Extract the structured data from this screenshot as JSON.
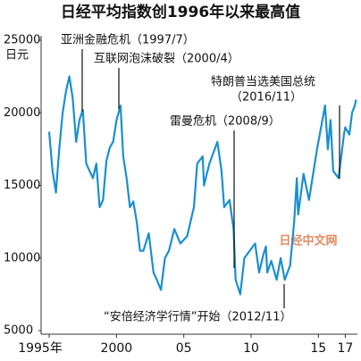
{
  "chart_data": {
    "type": "line",
    "title": "日经平均指数创1996年以来最高值",
    "y_unit": "日元",
    "watermark": "日经中文网",
    "annotations": [
      "亚洲金融危机（1997/7）",
      "互联网泡沫破裂（2000/4）",
      "雷曼危机（2008/9）",
      "特朗普当选美国总统",
      "（2016/11）",
      "“安倍经济学行情”开始（2012/11）"
    ],
    "x": [
      1995.0,
      1995.25,
      1995.5,
      1995.75,
      1996.0,
      1996.25,
      1996.5,
      1996.75,
      1997.0,
      1997.25,
      1997.5,
      1997.75,
      1998.0,
      1998.25,
      1998.5,
      1998.75,
      1999.0,
      1999.25,
      1999.5,
      1999.75,
      2000.0,
      2000.3,
      2000.5,
      2000.75,
      2001.0,
      2001.25,
      2001.5,
      2001.75,
      2002.0,
      2002.4,
      2002.75,
      2003.0,
      2003.3,
      2003.6,
      2003.9,
      2004.3,
      2004.75,
      2005.25,
      2005.75,
      2006.0,
      2006.4,
      2006.5,
      2006.9,
      2007.3,
      2007.5,
      2007.8,
      2008.0,
      2008.4,
      2008.7,
      2008.85,
      2009.2,
      2009.5,
      2009.9,
      2010.3,
      2010.6,
      2010.9,
      2011.1,
      2011.2,
      2011.5,
      2011.9,
      2012.2,
      2012.5,
      2012.9,
      2013.2,
      2013.4,
      2013.5,
      2013.9,
      2014.3,
      2014.9,
      2015.3,
      2015.5,
      2015.7,
      2015.9,
      2016.1,
      2016.5,
      2016.9,
      2017.0,
      2017.3,
      2017.5,
      2017.7,
      2017.8
    ],
    "series": [
      {
        "color": "#1a8fd0",
        "values": [
          18700,
          16000,
          14500,
          17500,
          20000,
          21500,
          22500,
          21000,
          18000,
          19500,
          20200,
          16500,
          16000,
          15500,
          16500,
          13500,
          14000,
          16700,
          17600,
          18000,
          19500,
          20500,
          17000,
          15500,
          13500,
          13900,
          12500,
          10500,
          10500,
          11700,
          9000,
          8500,
          7800,
          10000,
          10500,
          12000,
          11000,
          11500,
          13500,
          16500,
          17000,
          15000,
          16500,
          17500,
          18000,
          16000,
          13500,
          14000,
          12000,
          8500,
          7500,
          10000,
          10500,
          11000,
          9000,
          10200,
          10800,
          9000,
          9800,
          8500,
          10000,
          8500,
          9500,
          12500,
          15500,
          13000,
          15800,
          14000,
          17500,
          19500,
          20500,
          17500,
          19500,
          16000,
          15500,
          18500,
          19000,
          18500,
          20000,
          20500,
          20900
        ]
      }
    ],
    "xlim": [
      1994.4,
      2017.9
    ],
    "ylim": [
      5000,
      25000
    ],
    "xticks": [
      {
        "value": 1995,
        "label": "1995年"
      },
      2000,
      {
        "value": 2005,
        "label": "05"
      },
      {
        "value": 2010,
        "label": "10"
      },
      {
        "value": 2015,
        "label": "15"
      },
      {
        "value": 2017,
        "label": "17"
      }
    ],
    "yticks": [
      5000,
      10000,
      15000,
      20000,
      25000
    ]
  }
}
